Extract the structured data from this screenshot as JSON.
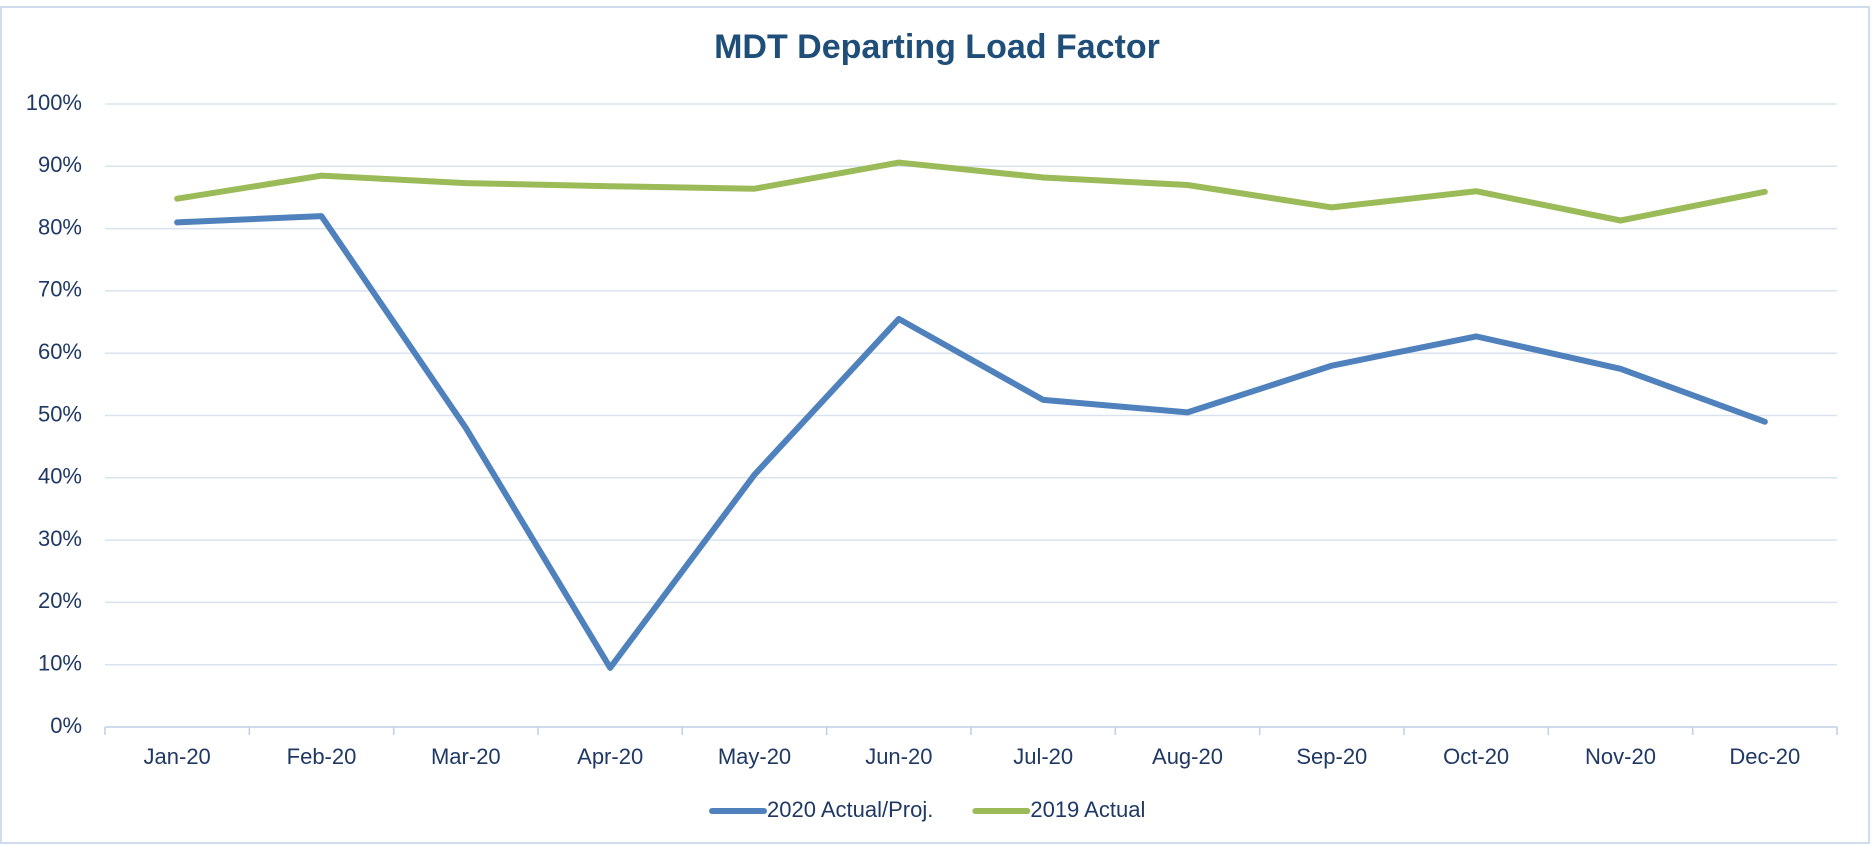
{
  "chart_data": {
    "type": "line",
    "title": "MDT Departing Load Factor",
    "categories": [
      "Jan-20",
      "Feb-20",
      "Mar-20",
      "Apr-20",
      "May-20",
      "Jun-20",
      "Jul-20",
      "Aug-20",
      "Sep-20",
      "Oct-20",
      "Nov-20",
      "Dec-20"
    ],
    "series": [
      {
        "name": "2020 Actual/Proj.",
        "color": "#4f81bd",
        "values": [
          81,
          82,
          48,
          9.5,
          40.5,
          65.5,
          52.5,
          50.5,
          58,
          62.7,
          57.5,
          49
        ]
      },
      {
        "name": "2019 Actual",
        "color": "#9bbb59",
        "values": [
          84.8,
          88.5,
          87.3,
          86.8,
          86.4,
          90.6,
          88.2,
          87,
          83.4,
          86,
          81.3,
          85.9
        ]
      }
    ],
    "ylim": [
      0,
      100
    ],
    "yticks": [
      {
        "value": 0,
        "label": "0%"
      },
      {
        "value": 10,
        "label": "10%"
      },
      {
        "value": 20,
        "label": "20%"
      },
      {
        "value": 30,
        "label": "30%"
      },
      {
        "value": 40,
        "label": "40%"
      },
      {
        "value": 50,
        "label": "50%"
      },
      {
        "value": 60,
        "label": "60%"
      },
      {
        "value": 70,
        "label": "70%"
      },
      {
        "value": 80,
        "label": "80%"
      },
      {
        "value": 90,
        "label": "90%"
      },
      {
        "value": 100,
        "label": "100%"
      }
    ],
    "grid": true,
    "legend": "bottom"
  }
}
